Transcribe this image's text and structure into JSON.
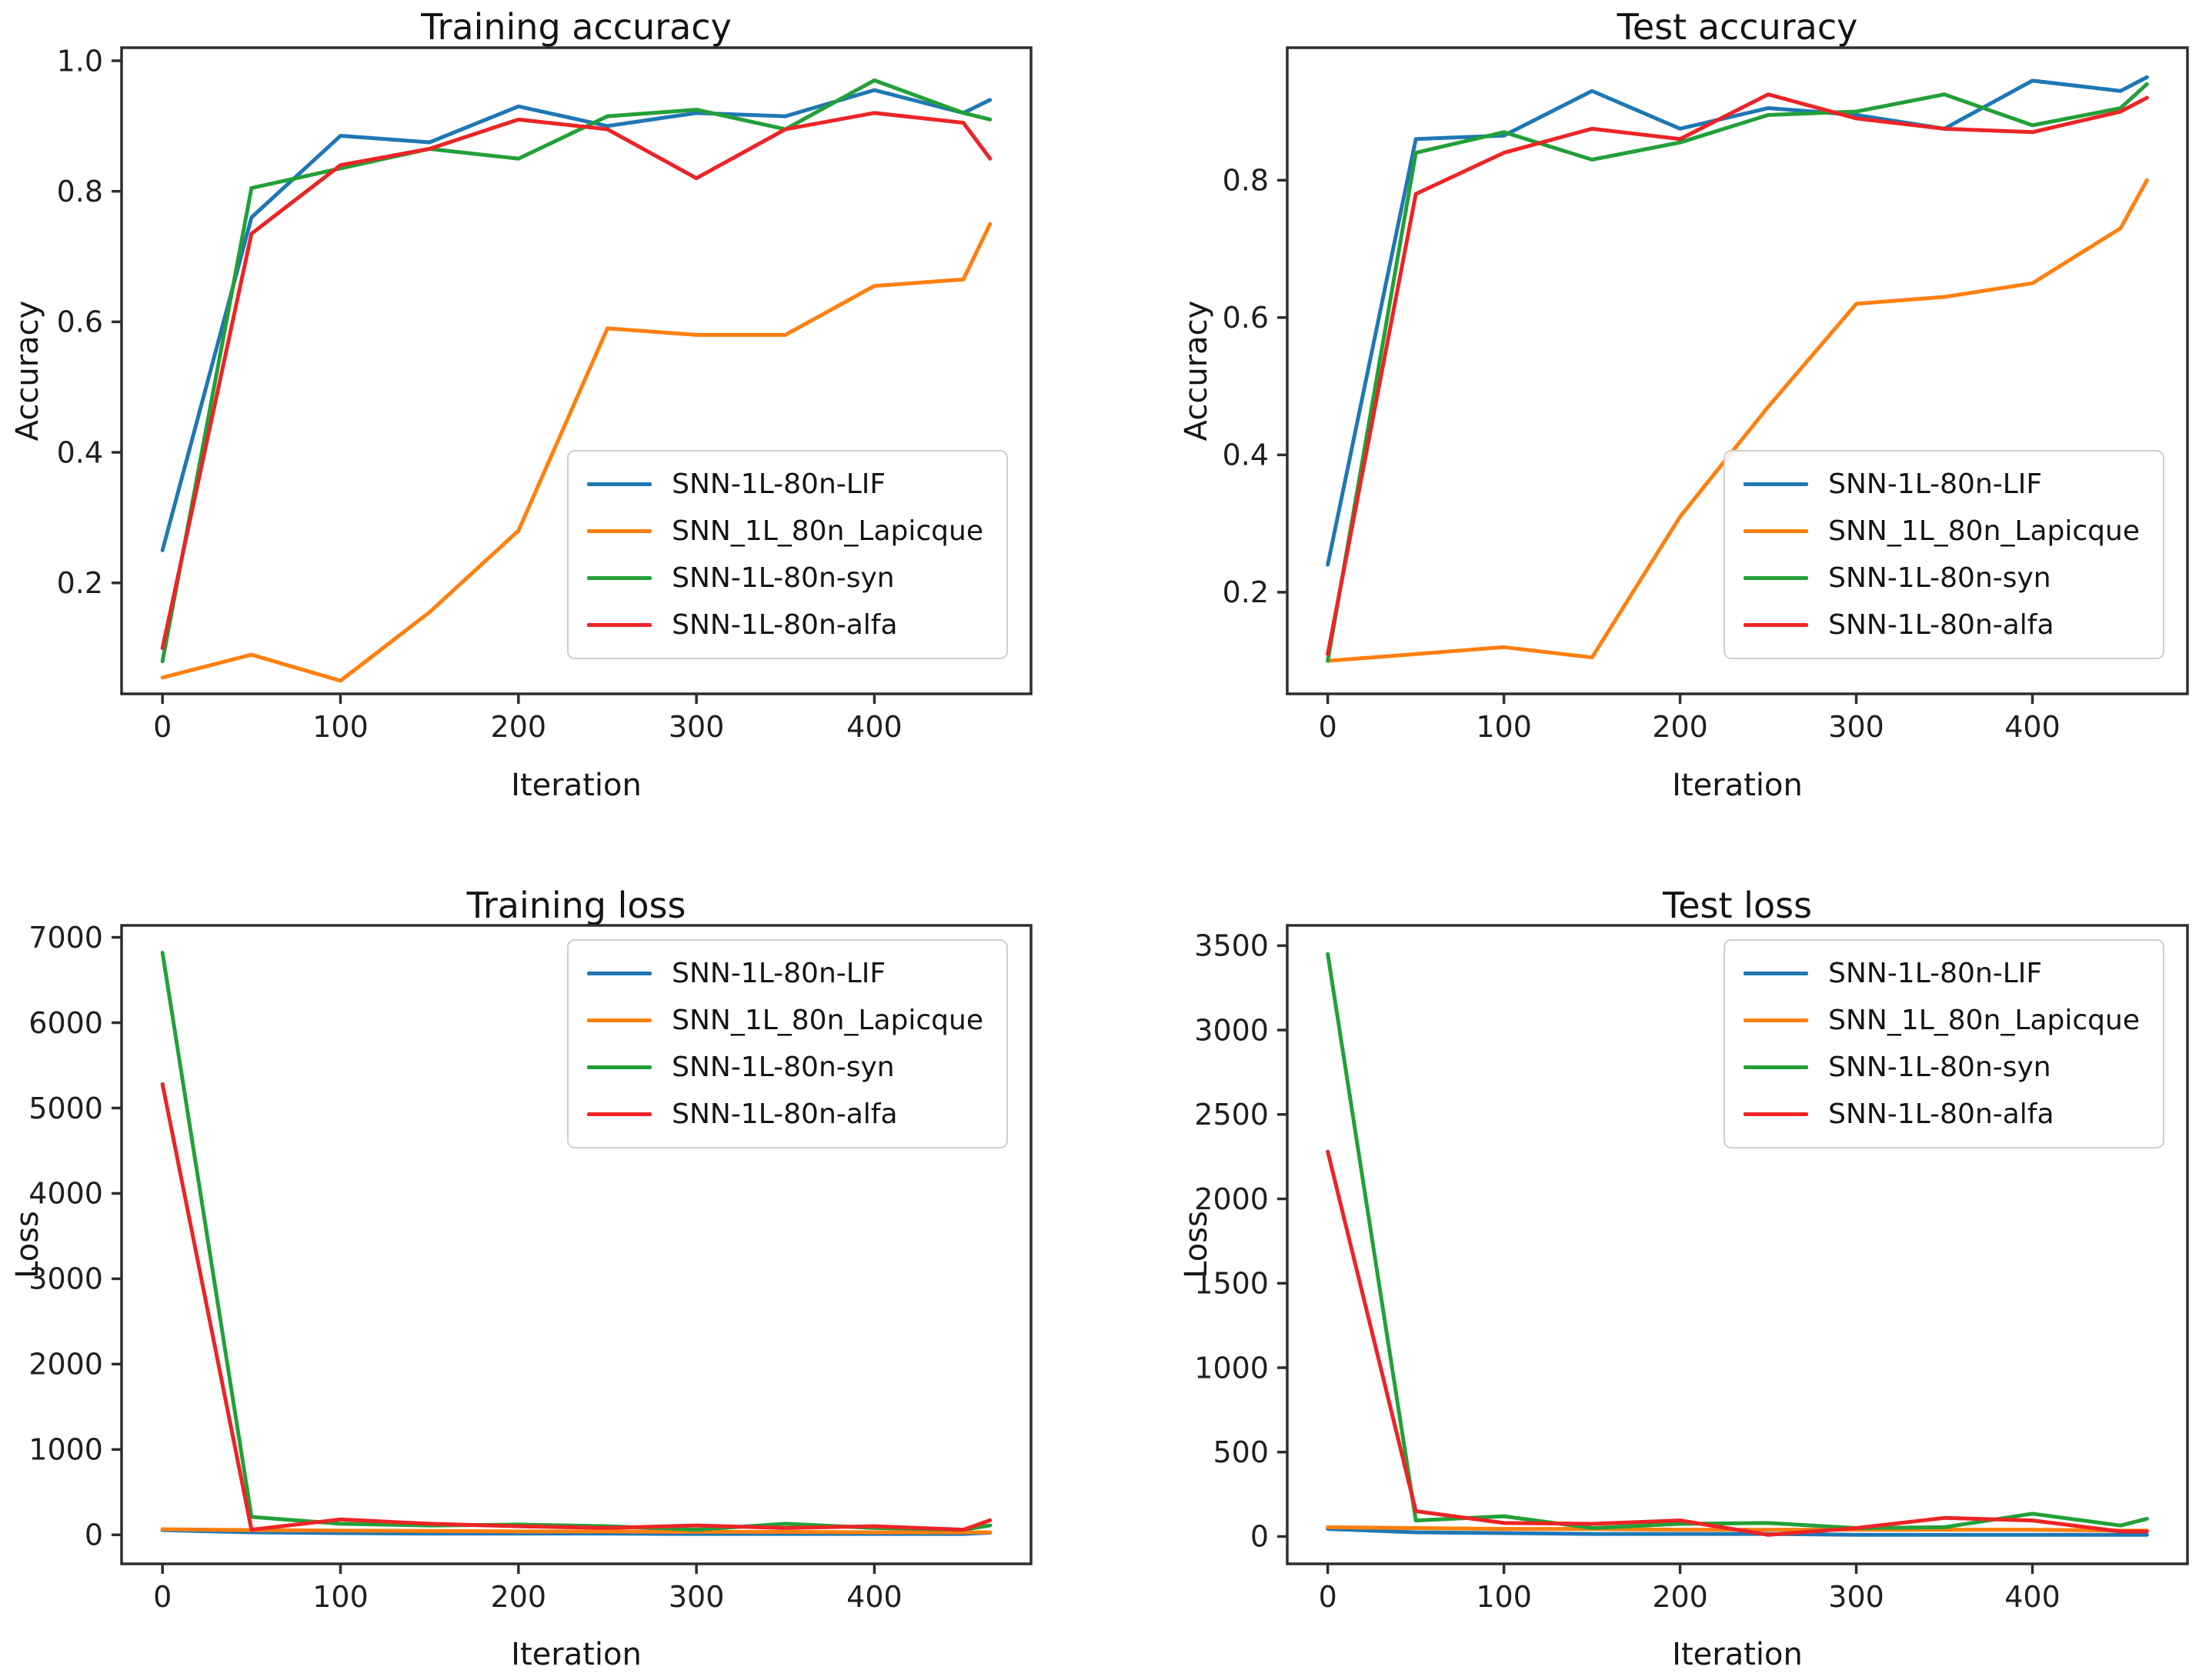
{
  "figure": {
    "background": "#ffffff",
    "columns": 2,
    "rows": 2
  },
  "chart_data": [
    {
      "type": "line",
      "title": "Training accuracy",
      "xlabel": "Iteration",
      "ylabel": "Accuracy",
      "xlim": [
        -23,
        488
      ],
      "ylim": [
        0.03,
        1.02
      ],
      "xticks": {
        "values": [
          0,
          100,
          200,
          300,
          400
        ],
        "labels": [
          "0",
          "100",
          "200",
          "300",
          "400"
        ]
      },
      "yticks": {
        "values": [
          0.2,
          0.4,
          0.6,
          0.8,
          1.0
        ],
        "labels": [
          "0.2",
          "0.4",
          "0.6",
          "0.8",
          "1.0"
        ]
      },
      "grid": false,
      "legend_position": "lower right",
      "x": [
        0,
        50,
        100,
        150,
        200,
        250,
        300,
        350,
        400,
        450,
        465
      ],
      "series": [
        {
          "name": "SNN-1L-80n-LIF",
          "color": "#1f77b4",
          "values": [
            0.25,
            0.76,
            0.885,
            0.875,
            0.93,
            0.9,
            0.92,
            0.915,
            0.955,
            0.92,
            0.94
          ]
        },
        {
          "name": "SNN_1L_80n_Lapicque",
          "color": "#ff7f0e",
          "values": [
            0.055,
            0.09,
            0.05,
            0.155,
            0.28,
            0.59,
            0.58,
            0.58,
            0.655,
            0.665,
            0.75
          ]
        },
        {
          "name": "SNN-1L-80n-syn",
          "color": "#22a038",
          "values": [
            0.08,
            0.805,
            0.835,
            0.865,
            0.85,
            0.915,
            0.925,
            0.895,
            0.97,
            0.92,
            0.91
          ]
        },
        {
          "name": "SNN-1L-80n-alfa",
          "color": "#ec2426",
          "values": [
            0.1,
            0.735,
            0.84,
            0.865,
            0.91,
            0.895,
            0.82,
            0.895,
            0.92,
            0.905,
            0.85
          ]
        }
      ]
    },
    {
      "type": "line",
      "title": "Test accuracy",
      "xlabel": "Iteration",
      "ylabel": "Accuracy",
      "xlim": [
        -23,
        488
      ],
      "ylim": [
        0.052,
        0.993
      ],
      "xticks": {
        "values": [
          0,
          100,
          200,
          300,
          400
        ],
        "labels": [
          "0",
          "100",
          "200",
          "300",
          "400"
        ]
      },
      "yticks": {
        "values": [
          0.2,
          0.4,
          0.6,
          0.8
        ],
        "labels": [
          "0.2",
          "0.4",
          "0.6",
          "0.8"
        ]
      },
      "grid": false,
      "legend_position": "lower right",
      "x": [
        0,
        50,
        100,
        150,
        200,
        250,
        300,
        350,
        400,
        450,
        465
      ],
      "series": [
        {
          "name": "SNN-1L-80n-LIF",
          "color": "#1f77b4",
          "values": [
            0.24,
            0.86,
            0.865,
            0.93,
            0.875,
            0.905,
            0.895,
            0.875,
            0.945,
            0.93,
            0.95
          ]
        },
        {
          "name": "SNN_1L_80n_Lapicque",
          "color": "#ff7f0e",
          "values": [
            0.1,
            0.11,
            0.12,
            0.105,
            0.31,
            0.47,
            0.62,
            0.63,
            0.65,
            0.73,
            0.8
          ]
        },
        {
          "name": "SNN-1L-80n-syn",
          "color": "#22a038",
          "values": [
            0.1,
            0.84,
            0.87,
            0.83,
            0.855,
            0.895,
            0.9,
            0.925,
            0.88,
            0.905,
            0.94
          ]
        },
        {
          "name": "SNN-1L-80n-alfa",
          "color": "#ec2426",
          "values": [
            0.11,
            0.78,
            0.84,
            0.875,
            0.86,
            0.925,
            0.89,
            0.875,
            0.87,
            0.9,
            0.92
          ]
        }
      ]
    },
    {
      "type": "line",
      "title": "Training loss",
      "xlabel": "Iteration",
      "ylabel": "Loss",
      "xlim": [
        -23,
        488
      ],
      "ylim": [
        -340,
        7140
      ],
      "xticks": {
        "values": [
          0,
          100,
          200,
          300,
          400
        ],
        "labels": [
          "0",
          "100",
          "200",
          "300",
          "400"
        ]
      },
      "yticks": {
        "values": [
          0,
          1000,
          2000,
          3000,
          4000,
          5000,
          6000,
          7000
        ],
        "labels": [
          "0",
          "1000",
          "2000",
          "3000",
          "4000",
          "5000",
          "6000",
          "7000"
        ]
      },
      "grid": false,
      "legend_position": "upper right",
      "x": [
        0,
        50,
        100,
        150,
        200,
        250,
        300,
        350,
        400,
        450,
        465
      ],
      "series": [
        {
          "name": "SNN-1L-80n-LIF",
          "color": "#1f77b4",
          "values": [
            55,
            30,
            20,
            15,
            15,
            15,
            10,
            10,
            10,
            10,
            25
          ]
        },
        {
          "name": "SNN_1L_80n_Lapicque",
          "color": "#ff7f0e",
          "values": [
            65,
            55,
            50,
            45,
            40,
            40,
            35,
            35,
            30,
            30,
            30
          ]
        },
        {
          "name": "SNN-1L-80n-syn",
          "color": "#22a038",
          "values": [
            6820,
            210,
            130,
            110,
            120,
            100,
            60,
            130,
            80,
            60,
            110
          ]
        },
        {
          "name": "SNN-1L-80n-alfa",
          "color": "#ec2426",
          "values": [
            5280,
            60,
            180,
            130,
            100,
            80,
            110,
            80,
            100,
            60,
            170
          ]
        }
      ]
    },
    {
      "type": "line",
      "title": "Test loss",
      "xlabel": "Iteration",
      "ylabel": "Loss",
      "xlim": [
        -23,
        488
      ],
      "ylim": [
        -162,
        3620
      ],
      "xticks": {
        "values": [
          0,
          100,
          200,
          300,
          400
        ],
        "labels": [
          "0",
          "100",
          "200",
          "300",
          "400"
        ]
      },
      "yticks": {
        "values": [
          0,
          500,
          1000,
          1500,
          2000,
          2500,
          3000,
          3500
        ],
        "labels": [
          "0",
          "500",
          "1000",
          "1500",
          "2000",
          "2500",
          "3000",
          "3500"
        ]
      },
      "grid": false,
      "legend_position": "upper right",
      "x": [
        0,
        50,
        100,
        150,
        200,
        250,
        300,
        350,
        400,
        450,
        465
      ],
      "series": [
        {
          "name": "SNN-1L-80n-LIF",
          "color": "#1f77b4",
          "values": [
            45,
            25,
            20,
            15,
            15,
            15,
            10,
            10,
            10,
            10,
            10
          ]
        },
        {
          "name": "SNN_1L_80n_Lapicque",
          "color": "#ff7f0e",
          "values": [
            55,
            50,
            45,
            45,
            40,
            40,
            40,
            40,
            40,
            35,
            35
          ]
        },
        {
          "name": "SNN-1L-80n-syn",
          "color": "#22a038",
          "values": [
            3450,
            95,
            120,
            50,
            75,
            80,
            50,
            55,
            135,
            65,
            105
          ]
        },
        {
          "name": "SNN-1L-80n-alfa",
          "color": "#ec2426",
          "values": [
            2280,
            150,
            80,
            75,
            95,
            10,
            50,
            110,
            95,
            30,
            30
          ]
        }
      ]
    }
  ]
}
